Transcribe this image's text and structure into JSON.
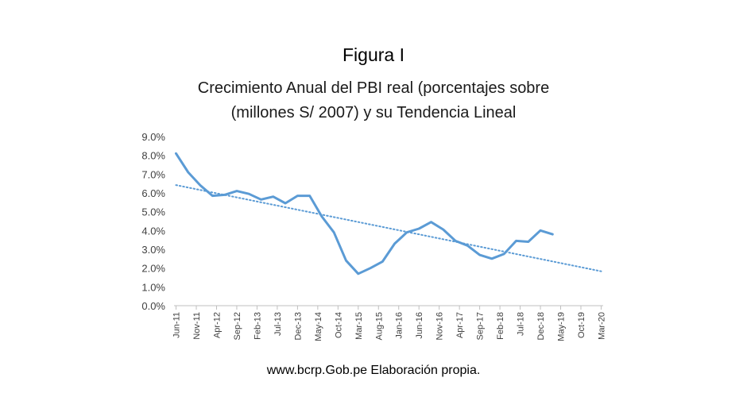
{
  "figure_label": "Figura I",
  "source_note": "www.bcrp.Gob.pe Elaboración propia.",
  "chart_data": {
    "type": "line",
    "title": "Crecimiento Anual del PBI real (porcentajes sobre (millones S/ 2007) y su Tendencia Lineal",
    "title_lines": [
      "Crecimiento Anual del PBI real (porcentajes sobre",
      "(millones S/ 2007) y su Tendencia  Lineal"
    ],
    "xlabel": "",
    "ylabel": "",
    "ylim": [
      0,
      9
    ],
    "y_ticks": [
      "0.0%",
      "1.0%",
      "2.0%",
      "3.0%",
      "4.0%",
      "5.0%",
      "6.0%",
      "7.0%",
      "8.0%",
      "9.0%"
    ],
    "x_tick_labels": [
      "Jun-11",
      "Nov-11",
      "Apr-12",
      "Sep-12",
      "Feb-13",
      "Jul-13",
      "Dec-13",
      "May-14",
      "Oct-14",
      "Mar-15",
      "Aug-15",
      "Jan-16",
      "Jun-16",
      "Nov-16",
      "Apr-17",
      "Sep-17",
      "Feb-18",
      "Jul-18",
      "Dec-18",
      "May-19",
      "Oct-19",
      "Mar-20"
    ],
    "grid": false,
    "legend": "none",
    "series": [
      {
        "color": "#5b9bd5",
        "style": "solid",
        "x": [
          "Jun-11",
          "Sep-11",
          "Dec-11",
          "Mar-12",
          "Jun-12",
          "Sep-12",
          "Dec-12",
          "Mar-13",
          "Jun-13",
          "Sep-13",
          "Dec-13",
          "Mar-14",
          "Jun-14",
          "Sep-14",
          "Dec-14",
          "Mar-15",
          "Jun-15",
          "Sep-15",
          "Dec-15",
          "Mar-16",
          "Jun-16",
          "Sep-16",
          "Dec-16",
          "Mar-17",
          "Jun-17",
          "Sep-17",
          "Dec-17",
          "Mar-18",
          "Jun-18",
          "Sep-18",
          "Dec-18",
          "Mar-19"
        ],
        "values": [
          8.1,
          7.1,
          6.4,
          5.85,
          5.9,
          6.1,
          5.95,
          5.65,
          5.8,
          5.45,
          5.85,
          5.85,
          4.75,
          3.9,
          2.4,
          1.7,
          2.0,
          2.35,
          3.3,
          3.9,
          4.1,
          4.45,
          4.05,
          3.45,
          3.2,
          2.7,
          2.5,
          2.75,
          3.45,
          3.4,
          4.0,
          3.8
        ]
      },
      {
        "color": "#5b9bd5",
        "style": "dotted",
        "x": [
          "Jun-11",
          "Mar-20"
        ],
        "values": [
          6.42,
          1.83
        ]
      }
    ]
  }
}
